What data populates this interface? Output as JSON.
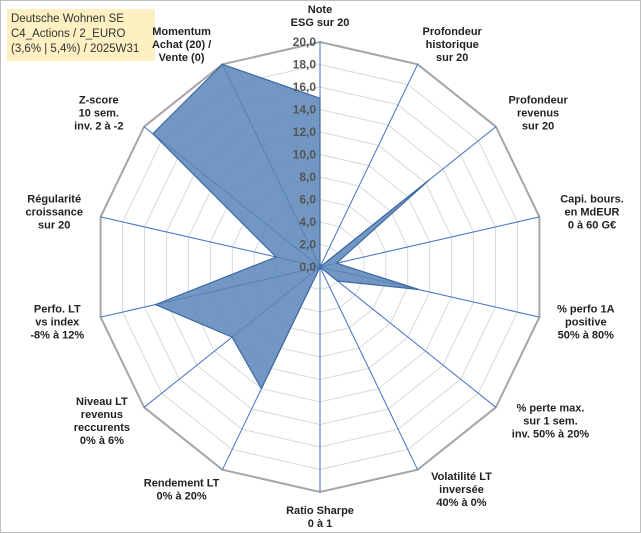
{
  "title_lines": [
    "Deutsche Wohnen SE",
    "C4_Actions / 2_EURO",
    "(3,6% | 5,4%) / 2025W31"
  ],
  "chart_data": {
    "type": "radar",
    "title": "Deutsche Wohnen SE",
    "rmin": 0,
    "rmax": 20,
    "tick_step": 2,
    "tick_labels": [
      "0,0",
      "2,0",
      "4,0",
      "6,0",
      "8,0",
      "10,0",
      "12,0",
      "14,0",
      "16,0",
      "18,0",
      "20,0"
    ],
    "grid": true,
    "colors": {
      "fill": "#5b85b8",
      "stroke": "#3e6aa3",
      "grid": "#d9d9d9",
      "spoke": "#4472c4"
    },
    "axes": [
      {
        "lines": [
          "Note",
          "ESG sur 20"
        ],
        "value": 15.0
      },
      {
        "lines": [
          "Profondeur",
          "historique",
          "sur 20"
        ],
        "value": 0.0
      },
      {
        "lines": [
          "Profondeur",
          "revenus",
          "sur 20"
        ],
        "value": 12.5
      },
      {
        "lines": [
          "Capi. bours.",
          "en MdEUR",
          "0 à 60 G€"
        ],
        "value": 1.5
      },
      {
        "lines": [
          "% perfo 1A",
          "positive",
          "50% à 80%"
        ],
        "value": 9.0
      },
      {
        "lines": [
          "% perte max.",
          "sur 1 sem.",
          "inv. 50% à 20%"
        ],
        "value": 2.0
      },
      {
        "lines": [
          "Volatilité LT",
          "inversée",
          "40% à 0%"
        ],
        "value": 0.0
      },
      {
        "lines": [
          "Ratio Sharpe",
          "0 à 1"
        ],
        "value": 0.0
      },
      {
        "lines": [
          "Rendement LT",
          "0% à 20%"
        ],
        "value": 12.0
      },
      {
        "lines": [
          "Niveau LT",
          "revenus",
          "reccurents",
          "0% à 6%"
        ],
        "value": 10.0
      },
      {
        "lines": [
          "Perfo. LT",
          "vs index",
          "-8% à 12%"
        ],
        "value": 15.0
      },
      {
        "lines": [
          "Régularité",
          "croissance",
          "sur 20"
        ],
        "value": 4.0
      },
      {
        "lines": [
          "Z-score",
          "10 sem.",
          "inv. 2 à -2"
        ],
        "value": 19.0
      },
      {
        "lines": [
          "Momentum",
          "Achat (20) /",
          "Vente (0)"
        ],
        "value": 20.0
      }
    ]
  }
}
